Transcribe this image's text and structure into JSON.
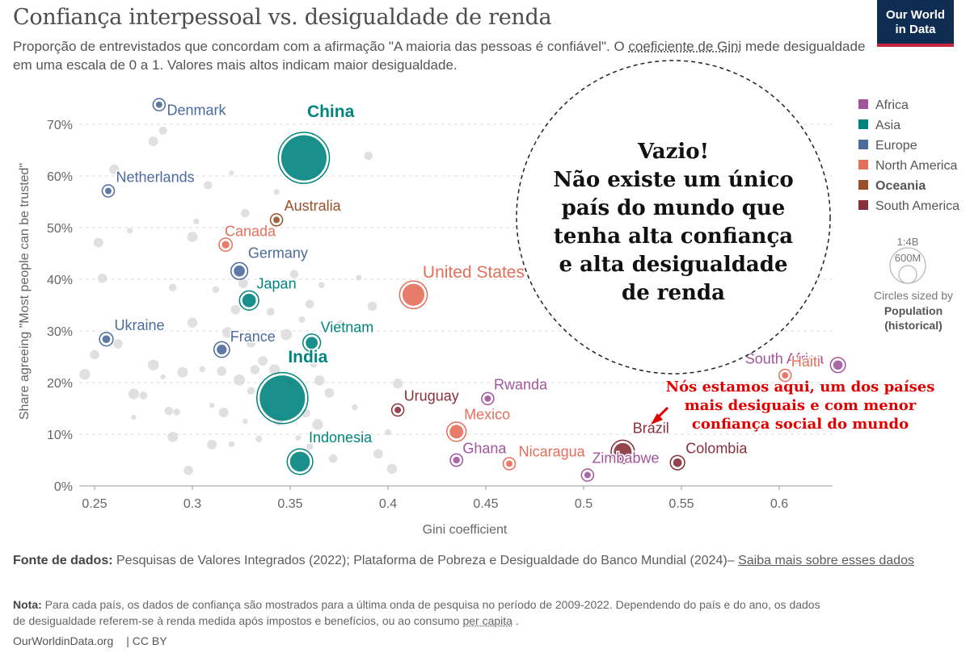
{
  "header": {
    "title": "Confiança interpessoal vs. desigualdade de renda",
    "subtitle_part1": "Proporção de entrevistados que concordam com a afirmação \"A maioria das pessoas é confiável\". O ",
    "subtitle_link": "coeficiente de Gini",
    "subtitle_part2": " mede  desigualdade em uma escala de 0 a 1. Valores mais altos indicam maior desigualdade."
  },
  "logo": {
    "line1": "Our World",
    "line2": "in Data"
  },
  "chart_data": {
    "type": "scatter",
    "xlabel": "Gini coefficient",
    "ylabel": "Share agreeing \"Most people can be trusted\"",
    "xlim": [
      0.242,
      0.632
    ],
    "ylim": [
      0,
      72
    ],
    "x_ticks": [
      0.25,
      0.3,
      0.35,
      0.4,
      0.45,
      0.5,
      0.55,
      0.6
    ],
    "x_tick_labels": [
      "0.25",
      "0.3",
      "0.35",
      "0.4",
      "0.45",
      "0.5",
      "0.55",
      "0.6"
    ],
    "y_ticks": [
      0,
      10,
      20,
      30,
      40,
      50,
      60,
      70
    ],
    "y_tick_labels": [
      "0%",
      "10%",
      "20%",
      "30%",
      "40%",
      "50%",
      "60%",
      "70%"
    ],
    "grid": "horizontal dashed",
    "legend": [
      {
        "name": "Africa",
        "color": "#a2559c"
      },
      {
        "name": "Asia",
        "color": "#00847e"
      },
      {
        "name": "Europe",
        "color": "#4c6a9c"
      },
      {
        "name": "North America",
        "color": "#e56e5a"
      },
      {
        "name": "Oceania",
        "color": "#9a5129"
      },
      {
        "name": "South America",
        "color": "#883039"
      }
    ],
    "highlighted_legend": "Oceania",
    "points": [
      {
        "country": "Denmark",
        "region": "Europe",
        "gini": 0.283,
        "trust": 73.8,
        "pop_m": 6
      },
      {
        "country": "Netherlands",
        "region": "Europe",
        "gini": 0.257,
        "trust": 57.1,
        "pop_m": 17
      },
      {
        "country": "China",
        "region": "Asia",
        "gini": 0.357,
        "trust": 63.5,
        "pop_m": 1400
      },
      {
        "country": "Australia",
        "region": "Oceania",
        "gini": 0.343,
        "trust": 51.5,
        "pop_m": 25
      },
      {
        "country": "Canada",
        "region": "North America",
        "gini": 0.317,
        "trust": 46.7,
        "pop_m": 38
      },
      {
        "country": "Germany",
        "region": "Europe",
        "gini": 0.324,
        "trust": 41.6,
        "pop_m": 83
      },
      {
        "country": "Japan",
        "region": "Asia",
        "gini": 0.329,
        "trust": 35.9,
        "pop_m": 125
      },
      {
        "country": "United States",
        "region": "North America",
        "gini": 0.413,
        "trust": 37.0,
        "pop_m": 330
      },
      {
        "country": "Ukraine",
        "region": "Europe",
        "gini": 0.256,
        "trust": 28.4,
        "pop_m": 42
      },
      {
        "country": "France",
        "region": "Europe",
        "gini": 0.315,
        "trust": 26.4,
        "pop_m": 67
      },
      {
        "country": "Vietnam",
        "region": "Asia",
        "gini": 0.361,
        "trust": 27.7,
        "pop_m": 97
      },
      {
        "country": "India",
        "region": "Asia",
        "gini": 0.346,
        "trust": 17.0,
        "pop_m": 1400
      },
      {
        "country": "Indonesia",
        "region": "Asia",
        "gini": 0.355,
        "trust": 4.7,
        "pop_m": 270
      },
      {
        "country": "South Africa",
        "region": "Africa",
        "gini": 0.63,
        "trust": 23.4,
        "pop_m": 59
      },
      {
        "country": "Haiti",
        "region": "North America",
        "gini": 0.603,
        "trust": 21.4,
        "pop_m": 11
      },
      {
        "country": "Rwanda",
        "region": "Africa",
        "gini": 0.451,
        "trust": 16.9,
        "pop_m": 13
      },
      {
        "country": "Uruguay",
        "region": "South America",
        "gini": 0.405,
        "trust": 14.7,
        "pop_m": 3
      },
      {
        "country": "Mexico",
        "region": "North America",
        "gini": 0.435,
        "trust": 10.5,
        "pop_m": 126
      },
      {
        "country": "Ghana",
        "region": "Africa",
        "gini": 0.435,
        "trust": 5.0,
        "pop_m": 31
      },
      {
        "country": "Nicaragua",
        "region": "North America",
        "gini": 0.462,
        "trust": 4.3,
        "pop_m": 7
      },
      {
        "country": "Brazil",
        "region": "South America",
        "gini": 0.52,
        "trust": 6.6,
        "pop_m": 213
      },
      {
        "country": "Colombia",
        "region": "South America",
        "gini": 0.548,
        "trust": 4.5,
        "pop_m": 51
      },
      {
        "country": "Zimbabwe",
        "region": "Africa",
        "gini": 0.502,
        "trust": 2.1,
        "pop_m": 15
      }
    ],
    "background_points": [
      [
        0.25,
        25.4
      ],
      [
        0.245,
        21.6
      ],
      [
        0.254,
        40.2
      ],
      [
        0.262,
        27.5
      ],
      [
        0.27,
        17.8
      ],
      [
        0.275,
        17.5
      ],
      [
        0.28,
        23.4
      ],
      [
        0.285,
        21.1
      ],
      [
        0.29,
        38.4
      ],
      [
        0.29,
        9.5
      ],
      [
        0.292,
        14.3
      ],
      [
        0.295,
        22.0
      ],
      [
        0.298,
        3.0
      ],
      [
        0.3,
        31.6
      ],
      [
        0.305,
        22.6
      ],
      [
        0.31,
        15.6
      ],
      [
        0.312,
        38.0
      ],
      [
        0.316,
        14.2
      ],
      [
        0.318,
        29.7
      ],
      [
        0.32,
        8.1
      ],
      [
        0.322,
        34.1
      ],
      [
        0.324,
        20.5
      ],
      [
        0.326,
        39.2
      ],
      [
        0.327,
        12.5
      ],
      [
        0.33,
        27.7
      ],
      [
        0.332,
        22.5
      ],
      [
        0.334,
        9.1
      ],
      [
        0.336,
        24.2
      ],
      [
        0.338,
        15.4
      ],
      [
        0.34,
        33.7
      ],
      [
        0.342,
        22.5
      ],
      [
        0.344,
        12.7
      ],
      [
        0.348,
        29.3
      ],
      [
        0.35,
        20.2
      ],
      [
        0.352,
        41.0
      ],
      [
        0.354,
        9.3
      ],
      [
        0.356,
        32.2
      ],
      [
        0.358,
        14.1
      ],
      [
        0.36,
        7.6
      ],
      [
        0.362,
        23.6
      ],
      [
        0.364,
        11.9
      ],
      [
        0.366,
        38.9
      ],
      [
        0.37,
        18.0
      ],
      [
        0.372,
        5.3
      ],
      [
        0.376,
        31.1
      ],
      [
        0.38,
        9.5
      ],
      [
        0.383,
        15.2
      ],
      [
        0.385,
        40.3
      ],
      [
        0.392,
        34.8
      ],
      [
        0.395,
        6.2
      ],
      [
        0.4,
        10.4
      ],
      [
        0.402,
        3.3
      ],
      [
        0.405,
        19.8
      ],
      [
        0.36,
        35.2
      ],
      [
        0.315,
        22.2
      ],
      [
        0.31,
        8.0
      ],
      [
        0.33,
        18.4
      ],
      [
        0.288,
        14.5
      ],
      [
        0.27,
        13.3
      ],
      [
        0.365,
        20.4
      ],
      [
        0.343,
        56.9
      ],
      [
        0.308,
        58.2
      ],
      [
        0.3,
        48.2
      ],
      [
        0.26,
        61.3
      ],
      [
        0.28,
        66.7
      ],
      [
        0.285,
        68.8
      ],
      [
        0.32,
        60.6
      ],
      [
        0.327,
        52.8
      ],
      [
        0.39,
        63.9
      ],
      [
        0.302,
        51.2
      ],
      [
        0.268,
        49.4
      ],
      [
        0.252,
        47.1
      ]
    ]
  },
  "annotations": {
    "circle_text": [
      "Vazio!",
      "Não existe um único",
      "país do mundo que",
      "tenha alta confiança",
      "e alta desigualdade",
      "de renda"
    ],
    "brazil_note": [
      "Nós estamos aqui, um dos países",
      "mais desiguais e com menor",
      "confiança social do mundo"
    ]
  },
  "size_legend": {
    "big": "1:4B",
    "small": "600M",
    "caption1": "Circles sized by",
    "caption2": "Population",
    "caption3": "(historical)"
  },
  "sources": {
    "label": "Fonte de dados:",
    "text": " Pesquisas de Valores Integrados (2022); Plataforma de Pobreza e Desigualdade do Banco Mundial (2024)– ",
    "link": "Saiba mais sobre esses dados"
  },
  "note": {
    "label": "Nota:",
    "text": " Para cada país, os dados de confiança são mostrados para a última onda de pesquisa no período de 2009-2022. Dependendo do país e do ano,  os dados de desigualdade referem-se à renda medida após impostos e benefícios, ou ao consumo ",
    "link": "per capita",
    "end": " ."
  },
  "footer": {
    "site": "OurWorldinData.org",
    "license": "| CC BY"
  }
}
